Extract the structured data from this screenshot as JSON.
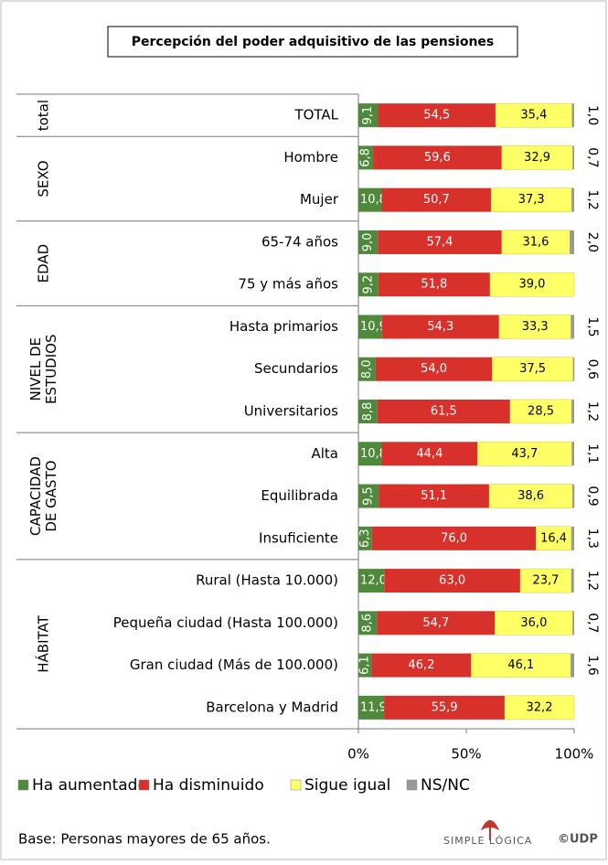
{
  "chart_data": {
    "type": "stacked-bar-horizontal",
    "title": "Percepción del poder adquisitivo de las pensiones",
    "groups": [
      {
        "label": [
          "total"
        ],
        "categories": [
          "TOTAL"
        ]
      },
      {
        "label": [
          "SEXO"
        ],
        "categories": [
          "Hombre",
          "Mujer"
        ]
      },
      {
        "label": [
          "EDAD"
        ],
        "categories": [
          "65-74 años",
          "75 y más años"
        ]
      },
      {
        "label": [
          "NIVEL DE",
          "ESTUDIOS"
        ],
        "categories": [
          "Hasta primarios",
          "Secundarios",
          "Universitarios"
        ]
      },
      {
        "label": [
          "CAPACIDAD",
          "DE GASTO"
        ],
        "categories": [
          "Alta",
          "Equilibrada",
          "Insuficiente"
        ]
      },
      {
        "label": [
          "HÁBITAT"
        ],
        "categories": [
          "Rural (Hasta 10.000)",
          "Pequeña ciudad (Hasta 100.000)",
          "Gran ciudad (Más de 100.000)",
          "Barcelona y Madrid"
        ]
      }
    ],
    "series": [
      {
        "name": "Ha aumentado",
        "color": "#4f8a3c",
        "values": [
          9.1,
          6.8,
          10.8,
          9.0,
          9.2,
          10.9,
          8.0,
          8.8,
          10.8,
          9.5,
          6.3,
          12.0,
          8.6,
          6.1,
          11.9
        ],
        "value_labels": [
          "9,1",
          "6,8",
          "10,8",
          "9,0",
          "9,2",
          "10,9",
          "8,0",
          "8,8",
          "10,8",
          "9,5",
          "6,3",
          "12,0",
          "8,6",
          "6,1",
          "11,9"
        ]
      },
      {
        "name": "Ha disminuido",
        "color": "#d8302b",
        "values": [
          54.5,
          59.6,
          50.7,
          57.4,
          51.8,
          54.3,
          54.0,
          61.5,
          44.4,
          51.1,
          76.0,
          63.0,
          54.7,
          46.2,
          55.9
        ],
        "value_labels": [
          "54,5",
          "59,6",
          "50,7",
          "57,4",
          "51,8",
          "54,3",
          "54,0",
          "61,5",
          "44,4",
          "51,1",
          "76,0",
          "63,0",
          "54,7",
          "46,2",
          "55,9"
        ]
      },
      {
        "name": "Sigue igual",
        "color": "#ffff66",
        "values": [
          35.4,
          32.9,
          37.3,
          31.6,
          39.0,
          33.3,
          37.5,
          28.5,
          43.7,
          38.6,
          16.4,
          23.7,
          36.0,
          46.1,
          32.2
        ],
        "value_labels": [
          "35,4",
          "32,9",
          "37,3",
          "31,6",
          "39,0",
          "33,3",
          "37,5",
          "28,5",
          "43,7",
          "38,6",
          "16,4",
          "23,7",
          "36,0",
          "46,1",
          "32,2"
        ]
      },
      {
        "name": "NS/NC",
        "color": "#999999",
        "values": [
          1.0,
          0.7,
          1.2,
          2.0,
          null,
          1.5,
          0.6,
          1.2,
          1.1,
          0.9,
          1.3,
          1.2,
          0.7,
          1.6,
          null
        ],
        "value_labels": [
          "1,0",
          "0,7",
          "1,2",
          "2,0",
          null,
          "1,5",
          "0,6",
          "1,2",
          "1,1",
          "0,9",
          "1,3",
          "1,2",
          "0,7",
          "1,6",
          null
        ]
      }
    ],
    "xlim": [
      0,
      100
    ],
    "xticks": [
      {
        "value": 0,
        "label": "0%"
      },
      {
        "value": 50,
        "label": "50%"
      },
      {
        "value": 100,
        "label": "100%"
      }
    ],
    "legend": "bottom",
    "source": "Base: Personas mayores de 65 años.",
    "logo": "SIMPLE LÓGICA",
    "logo_mark": "©UDP"
  }
}
